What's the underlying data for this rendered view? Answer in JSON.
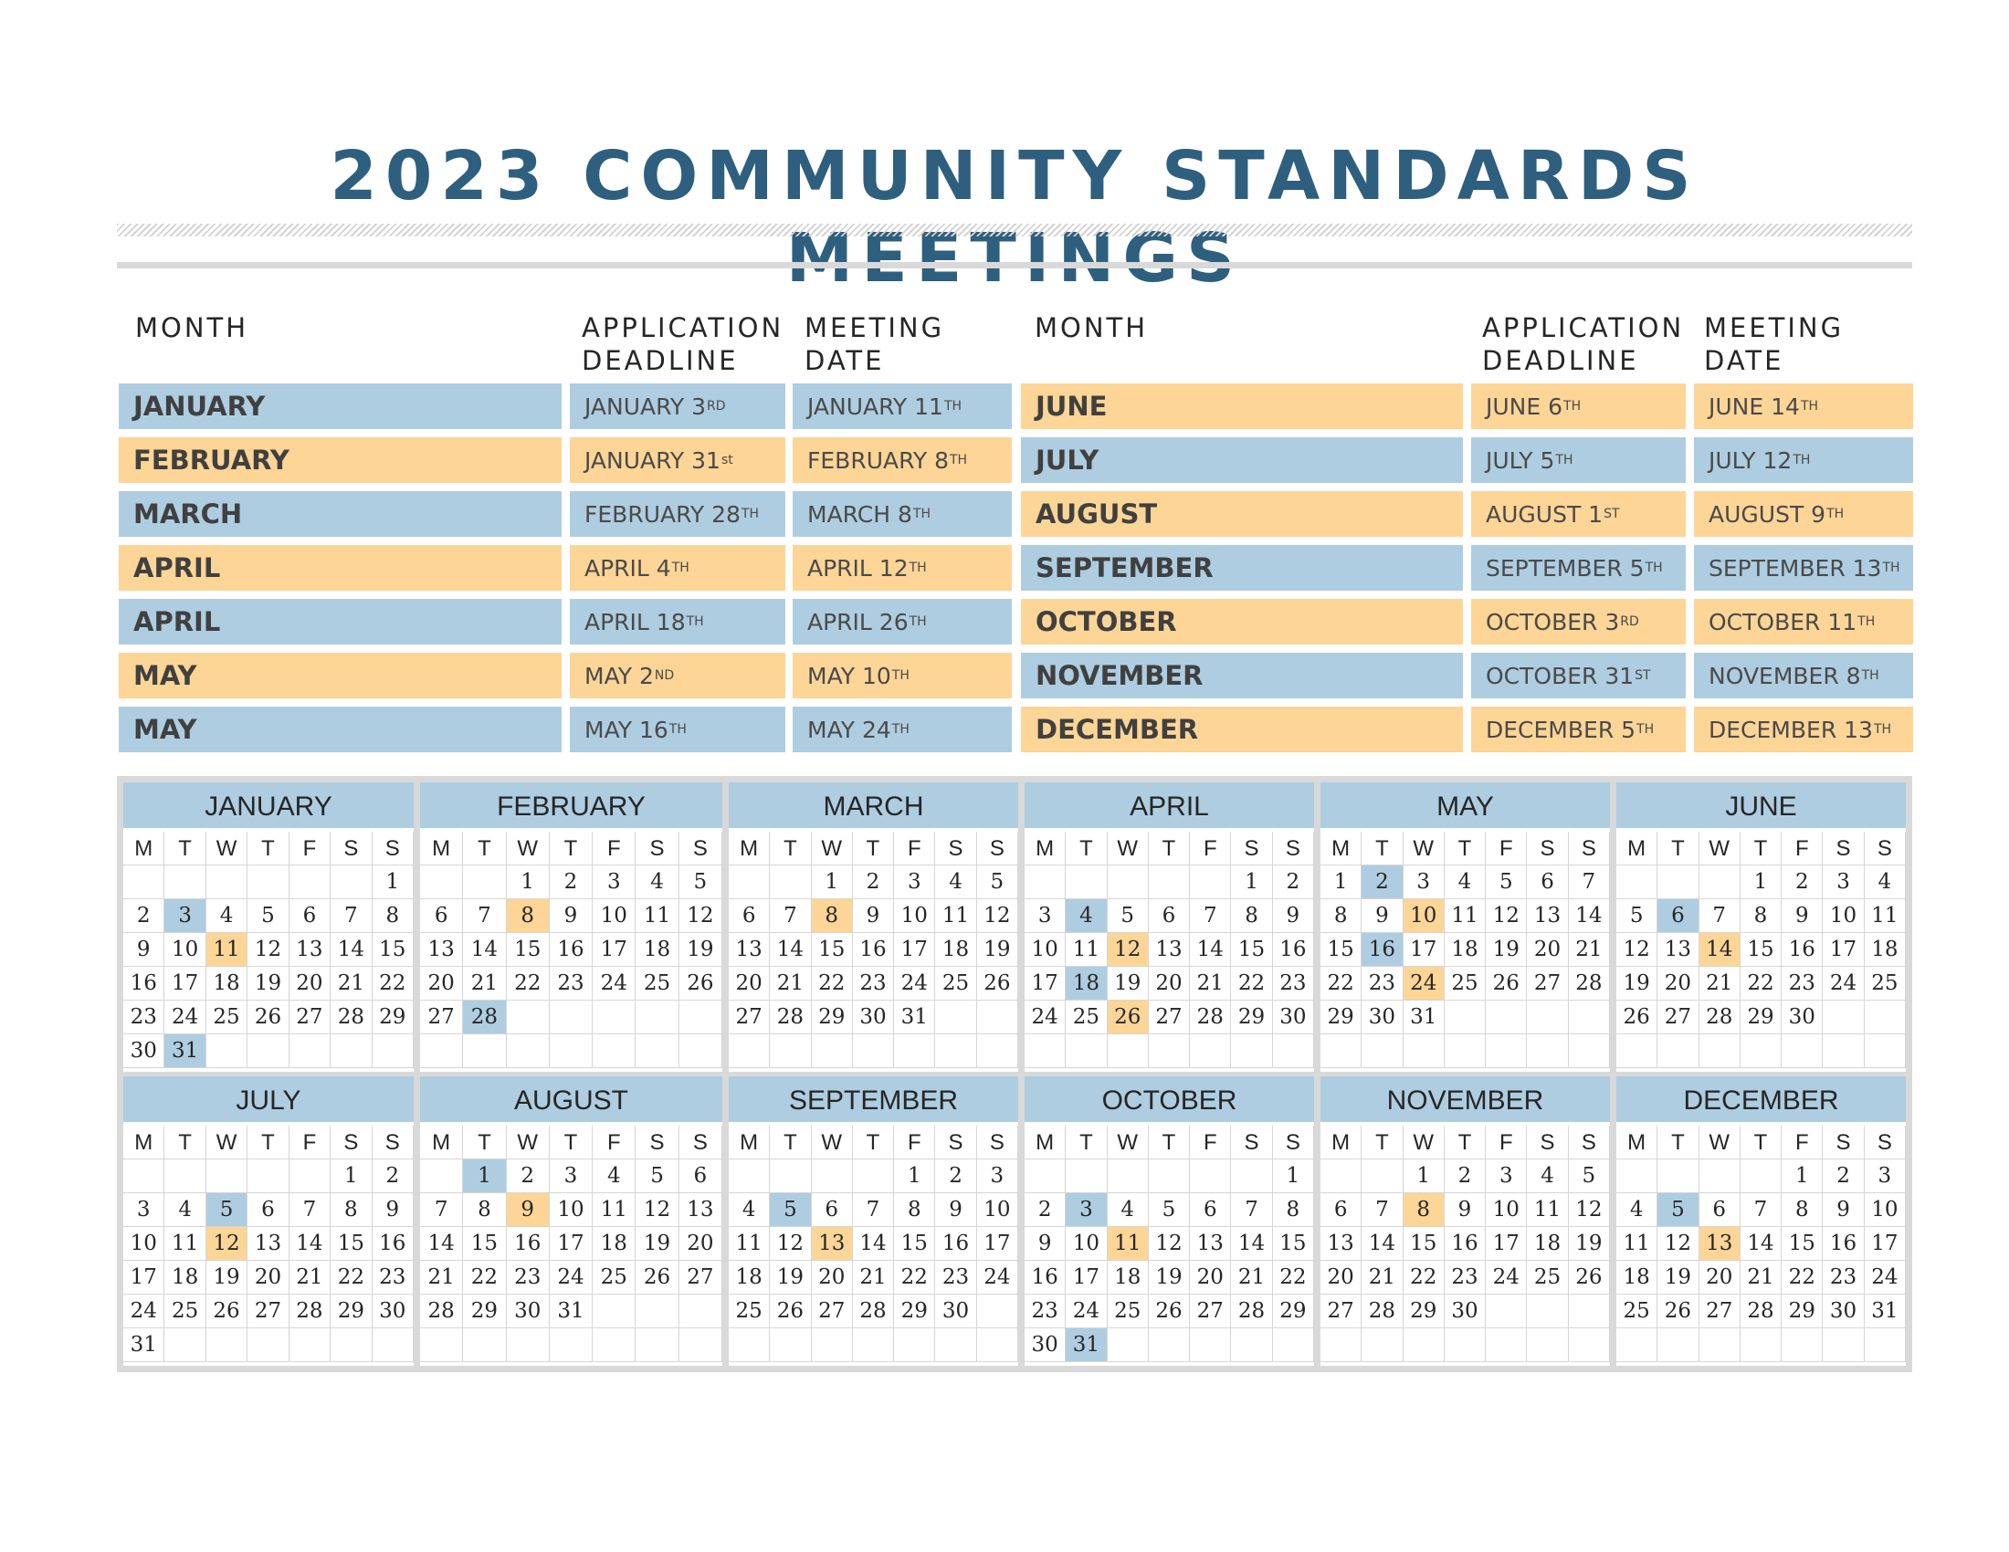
{
  "title": "2023 COMMUNITY STANDARDS MEETINGS",
  "colors": {
    "title": "#2e5f7f",
    "blue": "#aecde1",
    "orange": "#fdd596",
    "frame": "#d9d9d9"
  },
  "headers": {
    "month": "MONTH",
    "application_deadline": [
      "APPLICATION",
      "DEADLINE"
    ],
    "meeting_date": [
      "MEETING",
      "DATE"
    ]
  },
  "schedule_left": [
    {
      "month": "JANUARY",
      "deadline": "JANUARY 3",
      "deadline_sup": "RD",
      "meeting": "JANUARY 11",
      "meeting_sup": "TH",
      "color": "blue"
    },
    {
      "month": "FEBRUARY",
      "deadline": "JANUARY 31",
      "deadline_sup": "st",
      "meeting": "FEBRUARY 8",
      "meeting_sup": "TH",
      "color": "orange"
    },
    {
      "month": "MARCH",
      "deadline": "FEBRUARY 28",
      "deadline_sup": "TH",
      "meeting": "MARCH 8",
      "meeting_sup": "TH",
      "color": "blue"
    },
    {
      "month": "APRIL",
      "deadline": "APRIL 4",
      "deadline_sup": "TH",
      "meeting": "APRIL 12",
      "meeting_sup": "TH",
      "color": "orange"
    },
    {
      "month": "APRIL",
      "deadline": "APRIL 18",
      "deadline_sup": "TH",
      "meeting": "APRIL 26",
      "meeting_sup": "TH",
      "color": "blue"
    },
    {
      "month": "MAY",
      "deadline": "MAY 2",
      "deadline_sup": "ND",
      "meeting": "MAY 10",
      "meeting_sup": "TH",
      "color": "orange"
    },
    {
      "month": "MAY",
      "deadline": "MAY 16",
      "deadline_sup": "TH",
      "meeting": "MAY 24",
      "meeting_sup": "TH",
      "color": "blue"
    }
  ],
  "schedule_right": [
    {
      "month": "JUNE",
      "deadline": "JUNE 6",
      "deadline_sup": "TH",
      "meeting": "JUNE 14",
      "meeting_sup": "TH",
      "color": "orange"
    },
    {
      "month": "JULY",
      "deadline": "JULY 5",
      "deadline_sup": "TH",
      "meeting": "JULY 12",
      "meeting_sup": "TH",
      "color": "blue"
    },
    {
      "month": "AUGUST",
      "deadline": "AUGUST 1",
      "deadline_sup": "ST",
      "meeting": "AUGUST 9",
      "meeting_sup": "TH",
      "color": "orange"
    },
    {
      "month": "SEPTEMBER",
      "deadline": "SEPTEMBER 5",
      "deadline_sup": "TH",
      "meeting": "SEPTEMBER 13",
      "meeting_sup": "TH",
      "color": "blue"
    },
    {
      "month": "OCTOBER",
      "deadline": "OCTOBER 3",
      "deadline_sup": "RD",
      "meeting": "OCTOBER 11",
      "meeting_sup": "TH",
      "color": "orange"
    },
    {
      "month": "NOVEMBER",
      "deadline": "OCTOBER 31",
      "deadline_sup": "ST",
      "meeting": "NOVEMBER 8",
      "meeting_sup": "TH",
      "color": "blue"
    },
    {
      "month": "DECEMBER",
      "deadline": "DECEMBER 5",
      "deadline_sup": "TH",
      "meeting": "DECEMBER 13",
      "meeting_sup": "TH",
      "color": "orange"
    }
  ],
  "weekdays": [
    "M",
    "T",
    "W",
    "T",
    "F",
    "S",
    "S"
  ],
  "calendar": [
    {
      "name": "JANUARY",
      "start": 6,
      "days": 31,
      "deadlines": [
        3,
        31
      ],
      "meetings": [
        11
      ]
    },
    {
      "name": "FEBRUARY",
      "start": 2,
      "days": 28,
      "deadlines": [
        28
      ],
      "meetings": [
        8
      ]
    },
    {
      "name": "MARCH",
      "start": 2,
      "days": 31,
      "deadlines": [],
      "meetings": [
        8
      ]
    },
    {
      "name": "APRIL",
      "start": 5,
      "days": 30,
      "deadlines": [
        4,
        18
      ],
      "meetings": [
        12,
        26
      ]
    },
    {
      "name": "MAY",
      "start": 0,
      "days": 31,
      "deadlines": [
        2,
        16
      ],
      "meetings": [
        10,
        24
      ]
    },
    {
      "name": "JUNE",
      "start": 3,
      "days": 30,
      "deadlines": [
        6
      ],
      "meetings": [
        14
      ]
    },
    {
      "name": "JULY",
      "start": 5,
      "days": 31,
      "deadlines": [
        5
      ],
      "meetings": [
        12
      ]
    },
    {
      "name": "AUGUST",
      "start": 1,
      "days": 31,
      "deadlines": [
        1
      ],
      "meetings": [
        9
      ]
    },
    {
      "name": "SEPTEMBER",
      "start": 4,
      "days": 30,
      "deadlines": [
        5
      ],
      "meetings": [
        13
      ]
    },
    {
      "name": "OCTOBER",
      "start": 6,
      "days": 31,
      "deadlines": [
        3,
        31
      ],
      "meetings": [
        11
      ]
    },
    {
      "name": "NOVEMBER",
      "start": 2,
      "days": 30,
      "deadlines": [],
      "meetings": [
        8
      ]
    },
    {
      "name": "DECEMBER",
      "start": 4,
      "days": 31,
      "deadlines": [
        5
      ],
      "meetings": [
        13
      ]
    }
  ]
}
